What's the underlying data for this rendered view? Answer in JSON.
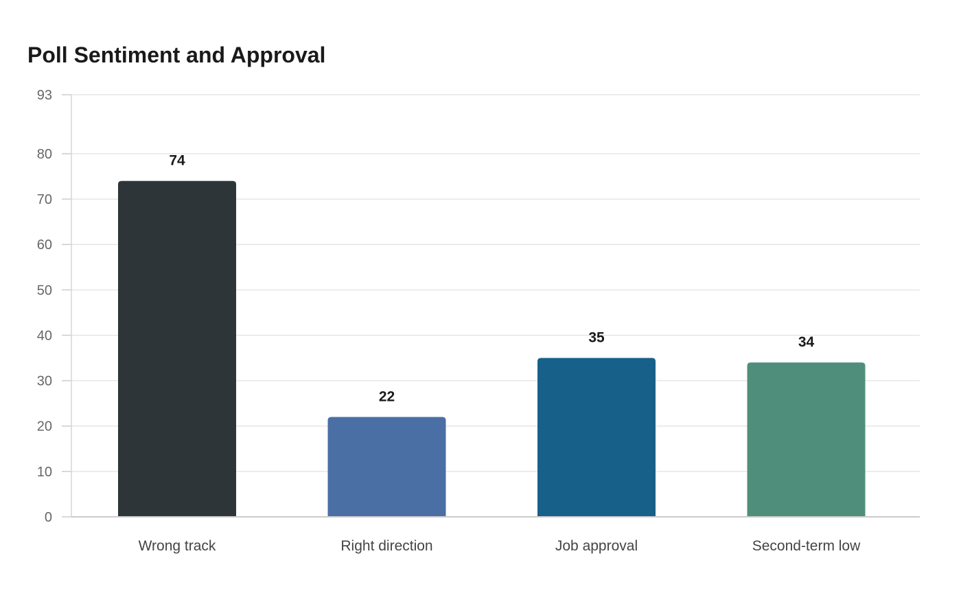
{
  "chart_data": {
    "type": "bar",
    "title": "Poll Sentiment and Approval",
    "xlabel": "",
    "ylabel": "",
    "categories": [
      "Wrong track",
      "Right direction",
      "Job approval",
      "Second-term low"
    ],
    "values": [
      74,
      22,
      35,
      34
    ],
    "colors": [
      "#2d3538",
      "#4a6fa5",
      "#176089",
      "#4f8e7b"
    ],
    "ylim": [
      0,
      93
    ],
    "yticks": [
      0,
      10,
      20,
      30,
      40,
      50,
      60,
      70,
      80,
      93
    ],
    "grid": true,
    "data_labels": true,
    "legend": "none"
  }
}
